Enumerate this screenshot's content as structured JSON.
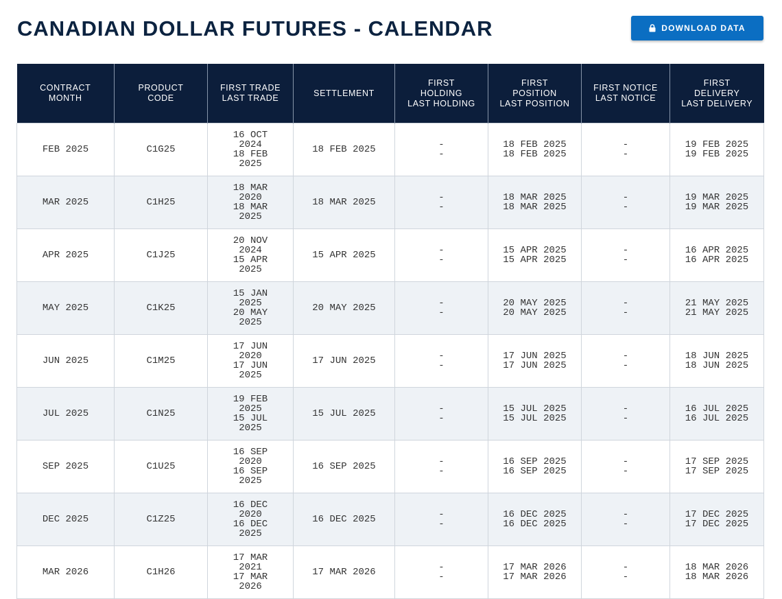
{
  "page": {
    "title": "CANADIAN DOLLAR FUTURES - CALENDAR",
    "download_label": "DOWNLOAD DATA",
    "download_icon": "lock-icon"
  },
  "table": {
    "headers": [
      {
        "line1": "CONTRACT",
        "line2": "MONTH",
        "line3": ""
      },
      {
        "line1": "PRODUCT",
        "line2": "CODE",
        "line3": ""
      },
      {
        "line1": "FIRST TRADE",
        "line2": "LAST TRADE",
        "line3": ""
      },
      {
        "line1": "SETTLEMENT",
        "line2": "",
        "line3": ""
      },
      {
        "line1": "FIRST",
        "line2": "HOLDING",
        "line3": "LAST HOLDING"
      },
      {
        "line1": "FIRST",
        "line2": "POSITION",
        "line3": "LAST POSITION"
      },
      {
        "line1": "FIRST NOTICE",
        "line2": "LAST NOTICE",
        "line3": ""
      },
      {
        "line1": "FIRST",
        "line2": "DELIVERY",
        "line3": "LAST DELIVERY"
      }
    ],
    "rows": [
      {
        "month": "FEB 2025",
        "code": "C1G25",
        "first_trade": [
          "16 OCT",
          "2024",
          "18 FEB",
          "2025"
        ],
        "settlement": "18 FEB 2025",
        "holding": [
          "-",
          "-"
        ],
        "position": [
          "18 FEB 2025",
          "18 FEB 2025"
        ],
        "notice": [
          "-",
          "-"
        ],
        "delivery": [
          "19 FEB 2025",
          "19 FEB 2025"
        ]
      },
      {
        "month": "MAR 2025",
        "code": "C1H25",
        "first_trade": [
          "18 MAR",
          "2020",
          "18 MAR",
          "2025"
        ],
        "settlement": "18 MAR 2025",
        "holding": [
          "-",
          "-"
        ],
        "position": [
          "18 MAR 2025",
          "18 MAR 2025"
        ],
        "notice": [
          "-",
          "-"
        ],
        "delivery": [
          "19 MAR 2025",
          "19 MAR 2025"
        ]
      },
      {
        "month": "APR 2025",
        "code": "C1J25",
        "first_trade": [
          "20 NOV",
          "2024",
          "15 APR",
          "2025"
        ],
        "settlement": "15 APR 2025",
        "holding": [
          "-",
          "-"
        ],
        "position": [
          "15 APR 2025",
          "15 APR 2025"
        ],
        "notice": [
          "-",
          "-"
        ],
        "delivery": [
          "16 APR 2025",
          "16 APR 2025"
        ]
      },
      {
        "month": "MAY 2025",
        "code": "C1K25",
        "first_trade": [
          "15 JAN",
          "2025",
          "20 MAY",
          "2025"
        ],
        "settlement": "20 MAY 2025",
        "holding": [
          "-",
          "-"
        ],
        "position": [
          "20 MAY 2025",
          "20 MAY 2025"
        ],
        "notice": [
          "-",
          "-"
        ],
        "delivery": [
          "21 MAY 2025",
          "21 MAY 2025"
        ]
      },
      {
        "month": "JUN 2025",
        "code": "C1M25",
        "first_trade": [
          "17 JUN",
          "2020",
          "17 JUN",
          "2025"
        ],
        "settlement": "17 JUN 2025",
        "holding": [
          "-",
          "-"
        ],
        "position": [
          "17 JUN 2025",
          "17 JUN 2025"
        ],
        "notice": [
          "-",
          "-"
        ],
        "delivery": [
          "18 JUN 2025",
          "18 JUN 2025"
        ]
      },
      {
        "month": "JUL 2025",
        "code": "C1N25",
        "first_trade": [
          "19 FEB",
          "2025",
          "15 JUL",
          "2025"
        ],
        "settlement": "15 JUL 2025",
        "holding": [
          "-",
          "-"
        ],
        "position": [
          "15 JUL 2025",
          "15 JUL 2025"
        ],
        "notice": [
          "-",
          "-"
        ],
        "delivery": [
          "16 JUL 2025",
          "16 JUL 2025"
        ]
      },
      {
        "month": "SEP 2025",
        "code": "C1U25",
        "first_trade": [
          "16 SEP",
          "2020",
          "16 SEP",
          "2025"
        ],
        "settlement": "16 SEP 2025",
        "holding": [
          "-",
          "-"
        ],
        "position": [
          "16 SEP 2025",
          "16 SEP 2025"
        ],
        "notice": [
          "-",
          "-"
        ],
        "delivery": [
          "17 SEP 2025",
          "17 SEP 2025"
        ]
      },
      {
        "month": "DEC 2025",
        "code": "C1Z25",
        "first_trade": [
          "16 DEC",
          "2020",
          "16 DEC",
          "2025"
        ],
        "settlement": "16 DEC 2025",
        "holding": [
          "-",
          "-"
        ],
        "position": [
          "16 DEC 2025",
          "16 DEC 2025"
        ],
        "notice": [
          "-",
          "-"
        ],
        "delivery": [
          "17 DEC 2025",
          "17 DEC 2025"
        ]
      },
      {
        "month": "MAR 2026",
        "code": "C1H26",
        "first_trade": [
          "17 MAR",
          "2021",
          "17 MAR",
          "2026"
        ],
        "settlement": "17 MAR 2026",
        "holding": [
          "-",
          "-"
        ],
        "position": [
          "17 MAR 2026",
          "17 MAR 2026"
        ],
        "notice": [
          "-",
          "-"
        ],
        "delivery": [
          "18 MAR 2026",
          "18 MAR 2026"
        ]
      }
    ]
  },
  "colors": {
    "title": "#0c2340",
    "header_bg": "#0c1e3b",
    "button_bg": "#0b6ec2",
    "alt_row_bg": "#eef2f6"
  }
}
